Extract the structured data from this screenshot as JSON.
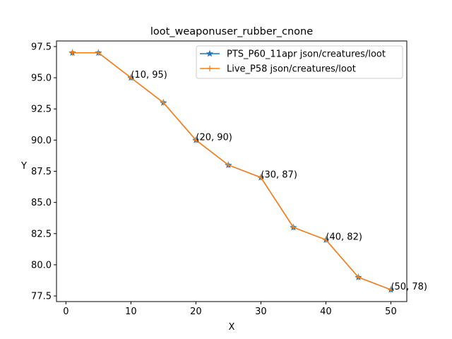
{
  "chart_data": {
    "type": "line",
    "title": "loot_weaponuser_rubber_cnone",
    "xlabel": "X",
    "ylabel": "Y",
    "xlim": [
      -1.45,
      52.45
    ],
    "ylim": [
      77.05,
      97.95
    ],
    "xticks": [
      0,
      10,
      20,
      30,
      40,
      50
    ],
    "xtick_labels": [
      "0",
      "10",
      "20",
      "30",
      "40",
      "50"
    ],
    "yticks": [
      77.5,
      80.0,
      82.5,
      85.0,
      87.5,
      90.0,
      92.5,
      95.0,
      97.5
    ],
    "ytick_labels": [
      "77.5",
      "80.0",
      "82.5",
      "85.0",
      "87.5",
      "90.0",
      "92.5",
      "95.0",
      "97.5"
    ],
    "grid": false,
    "legend_position": "upper-right",
    "series": [
      {
        "name": "PTS_P60_11apr json/creatures/loot",
        "color": "#1f77b4",
        "marker": "star",
        "x": [
          1,
          5,
          10,
          15,
          20,
          25,
          30,
          35,
          40,
          45,
          50
        ],
        "y": [
          97,
          97,
          95,
          93,
          90,
          88,
          87,
          83,
          82,
          79,
          78
        ]
      },
      {
        "name": "Live_P58 json/creatures/loot",
        "color": "#ff7f0e",
        "marker": "plus",
        "x": [
          1,
          5,
          10,
          15,
          20,
          25,
          30,
          35,
          40,
          45,
          50
        ],
        "y": [
          97,
          97,
          95,
          93,
          90,
          88,
          87,
          83,
          82,
          79,
          78
        ]
      }
    ],
    "annotations": [
      {
        "x": 10,
        "y": 95,
        "text": "(10, 95)"
      },
      {
        "x": 20,
        "y": 90,
        "text": "(20, 90)"
      },
      {
        "x": 30,
        "y": 87,
        "text": "(30, 87)"
      },
      {
        "x": 40,
        "y": 82,
        "text": "(40, 82)"
      },
      {
        "x": 50,
        "y": 78,
        "text": "(50, 78)"
      }
    ]
  }
}
